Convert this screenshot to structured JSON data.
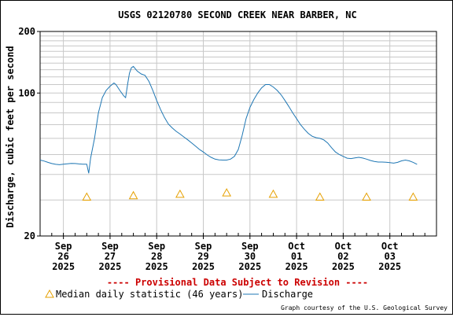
{
  "chart_data": {
    "type": "line",
    "title": "USGS 02120780 SECOND CREEK NEAR BARBER, NC",
    "ylabel": "Discharge, cubic feet per second",
    "xlabel": "",
    "y_scale": "log",
    "ylim": [
      20,
      200
    ],
    "y_tick_labels": [
      "20",
      "100",
      "200"
    ],
    "grid": true,
    "x_range_days": [
      "2025-09-25T12:00",
      "2025-10-04T00:00"
    ],
    "x_ticks": [
      {
        "date": "2025-09-26",
        "label": [
          "Sep",
          "26",
          "2025"
        ]
      },
      {
        "date": "2025-09-27",
        "label": [
          "Sep",
          "27",
          "2025"
        ]
      },
      {
        "date": "2025-09-28",
        "label": [
          "Sep",
          "28",
          "2025"
        ]
      },
      {
        "date": "2025-09-29",
        "label": [
          "Sep",
          "29",
          "2025"
        ]
      },
      {
        "date": "2025-09-30",
        "label": [
          "Sep",
          "30",
          "2025"
        ]
      },
      {
        "date": "2025-10-01",
        "label": [
          "Oct",
          "01",
          "2025"
        ]
      },
      {
        "date": "2025-10-02",
        "label": [
          "Oct",
          "02",
          "2025"
        ]
      },
      {
        "date": "2025-10-03",
        "label": [
          "Oct",
          "03",
          "2025"
        ]
      }
    ],
    "series": [
      {
        "name": "Discharge",
        "color": "#1f77b4",
        "points": [
          [
            "2025-09-25T12:00",
            47
          ],
          [
            "2025-09-25T14:00",
            46.5
          ],
          [
            "2025-09-25T16:00",
            45.8
          ],
          [
            "2025-09-25T18:00",
            45.2
          ],
          [
            "2025-09-25T20:00",
            44.8
          ],
          [
            "2025-09-25T22:00",
            44.6
          ],
          [
            "2025-09-26T00:00",
            44.9
          ],
          [
            "2025-09-26T02:00",
            45.1
          ],
          [
            "2025-09-26T04:00",
            45.3
          ],
          [
            "2025-09-26T06:00",
            45.2
          ],
          [
            "2025-09-26T08:00",
            45
          ],
          [
            "2025-09-26T10:00",
            44.9
          ],
          [
            "2025-09-26T12:00",
            44.9
          ],
          [
            "2025-09-26T13:00",
            40.5
          ],
          [
            "2025-09-26T14:00",
            48
          ],
          [
            "2025-09-26T16:00",
            60
          ],
          [
            "2025-09-26T18:00",
            80
          ],
          [
            "2025-09-26T20:00",
            95
          ],
          [
            "2025-09-26T22:00",
            103
          ],
          [
            "2025-09-27T00:00",
            108
          ],
          [
            "2025-09-27T02:00",
            112
          ],
          [
            "2025-09-27T03:00",
            110
          ],
          [
            "2025-09-27T05:00",
            103
          ],
          [
            "2025-09-27T07:00",
            97
          ],
          [
            "2025-09-27T08:00",
            95
          ],
          [
            "2025-09-27T09:00",
            110
          ],
          [
            "2025-09-27T10:00",
            125
          ],
          [
            "2025-09-27T11:00",
            133
          ],
          [
            "2025-09-27T12:00",
            135
          ],
          [
            "2025-09-27T14:00",
            128
          ],
          [
            "2025-09-27T16:00",
            124
          ],
          [
            "2025-09-27T18:00",
            122
          ],
          [
            "2025-09-27T20:00",
            114
          ],
          [
            "2025-09-27T22:00",
            103
          ],
          [
            "2025-09-28T00:00",
            92
          ],
          [
            "2025-09-28T02:00",
            83
          ],
          [
            "2025-09-28T04:00",
            76
          ],
          [
            "2025-09-28T06:00",
            70.5
          ],
          [
            "2025-09-28T08:00",
            67.5
          ],
          [
            "2025-09-28T10:00",
            65
          ],
          [
            "2025-09-28T12:00",
            63
          ],
          [
            "2025-09-28T14:00",
            61
          ],
          [
            "2025-09-28T16:00",
            59
          ],
          [
            "2025-09-28T18:00",
            57
          ],
          [
            "2025-09-28T20:00",
            55
          ],
          [
            "2025-09-28T22:00",
            53
          ],
          [
            "2025-09-29T00:00",
            51.5
          ],
          [
            "2025-09-29T02:00",
            49.8
          ],
          [
            "2025-09-29T04:00",
            48.5
          ],
          [
            "2025-09-29T06:00",
            47.5
          ],
          [
            "2025-09-29T08:00",
            47.1
          ],
          [
            "2025-09-29T10:00",
            47
          ],
          [
            "2025-09-29T12:00",
            47
          ],
          [
            "2025-09-29T14:00",
            47.5
          ],
          [
            "2025-09-29T16:00",
            49
          ],
          [
            "2025-09-29T18:00",
            53
          ],
          [
            "2025-09-29T20:00",
            62
          ],
          [
            "2025-09-29T22:00",
            75
          ],
          [
            "2025-09-30T00:00",
            85
          ],
          [
            "2025-09-30T02:00",
            93
          ],
          [
            "2025-09-30T04:00",
            100
          ],
          [
            "2025-09-30T06:00",
            106
          ],
          [
            "2025-09-30T08:00",
            110
          ],
          [
            "2025-09-30T10:00",
            110
          ],
          [
            "2025-09-30T12:00",
            107
          ],
          [
            "2025-09-30T14:00",
            103
          ],
          [
            "2025-09-30T16:00",
            98
          ],
          [
            "2025-09-30T18:00",
            92
          ],
          [
            "2025-09-30T20:00",
            86
          ],
          [
            "2025-09-30T22:00",
            80
          ],
          [
            "2025-10-01T00:00",
            75
          ],
          [
            "2025-10-01T02:00",
            70
          ],
          [
            "2025-10-01T04:00",
            66.5
          ],
          [
            "2025-10-01T06:00",
            63.5
          ],
          [
            "2025-10-01T08:00",
            61.5
          ],
          [
            "2025-10-01T10:00",
            60.5
          ],
          [
            "2025-10-01T12:00",
            60
          ],
          [
            "2025-10-01T14:00",
            59
          ],
          [
            "2025-10-01T16:00",
            57
          ],
          [
            "2025-10-01T18:00",
            54
          ],
          [
            "2025-10-01T20:00",
            51.5
          ],
          [
            "2025-10-01T22:00",
            50
          ],
          [
            "2025-10-02T00:00",
            49
          ],
          [
            "2025-10-02T02:00",
            48
          ],
          [
            "2025-10-02T04:00",
            47.8
          ],
          [
            "2025-10-02T06:00",
            48.2
          ],
          [
            "2025-10-02T08:00",
            48.5
          ],
          [
            "2025-10-02T10:00",
            48.1
          ],
          [
            "2025-10-02T12:00",
            47.5
          ],
          [
            "2025-10-02T14:00",
            46.8
          ],
          [
            "2025-10-02T16:00",
            46.3
          ],
          [
            "2025-10-02T18:00",
            46
          ],
          [
            "2025-10-02T20:00",
            46
          ],
          [
            "2025-10-02T22:00",
            45.9
          ],
          [
            "2025-10-03T00:00",
            45.7
          ],
          [
            "2025-10-03T02:00",
            45.4
          ],
          [
            "2025-10-03T04:00",
            45.8
          ],
          [
            "2025-10-03T06:00",
            46.6
          ],
          [
            "2025-10-03T08:00",
            47
          ],
          [
            "2025-10-03T10:00",
            46.6
          ],
          [
            "2025-10-03T12:00",
            45.8
          ],
          [
            "2025-10-03T14:00",
            44.8
          ]
        ]
      }
    ],
    "median_statistic": {
      "name": "Median daily statistic (46 years)",
      "color": "#e6a000",
      "points": [
        [
          "2025-09-26",
          31
        ],
        [
          "2025-09-27",
          31.5
        ],
        [
          "2025-09-28",
          32
        ],
        [
          "2025-09-29",
          32.5
        ],
        [
          "2025-09-30",
          32
        ],
        [
          "2025-10-01",
          31
        ],
        [
          "2025-10-02",
          31
        ],
        [
          "2025-10-03",
          31
        ]
      ]
    },
    "legend": {
      "items": [
        "Median daily statistic (46 years)",
        "Discharge"
      ],
      "placement": "bottom"
    },
    "annotations": {
      "provisional": "---- Provisional Data Subject to Revision ----",
      "credit": "Graph courtesy of the U.S. Geological Survey"
    }
  }
}
